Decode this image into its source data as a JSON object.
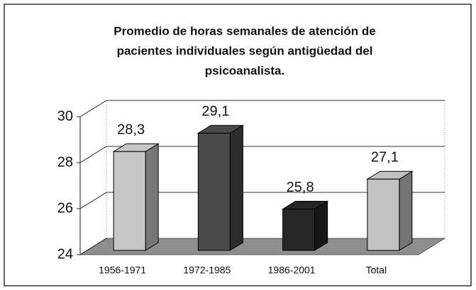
{
  "chart_data": {
    "type": "bar3d",
    "title": [
      "Promedio de horas semanales de atención de",
      "pacientes individuales según antigüedad del",
      "psicoanalista."
    ],
    "categories": [
      "1956-1971",
      "1972-1985",
      "1986-2001",
      "Total"
    ],
    "values": [
      28.3,
      29.1,
      25.8,
      27.1
    ],
    "value_labels": [
      "28,3",
      "29,1",
      "25,8",
      "27,1"
    ],
    "colors": [
      "#c6c6c6",
      "#4a4a4a",
      "#262626",
      "#c2c2c2"
    ],
    "ylim": [
      24,
      30
    ],
    "yticks": [
      24,
      26,
      28,
      30
    ],
    "grid": true
  }
}
